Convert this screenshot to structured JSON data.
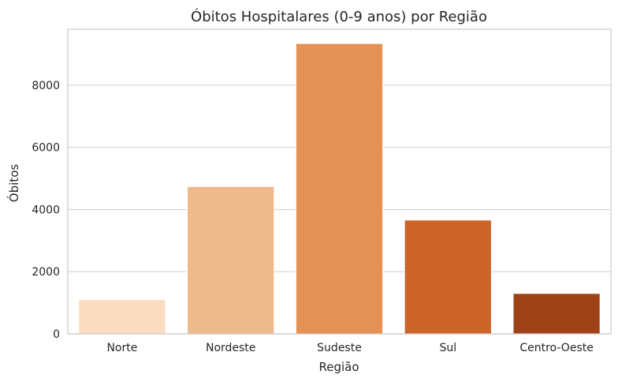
{
  "chart_data": {
    "type": "bar",
    "title": "Óbitos Hospitalares (0-9 anos) por Região",
    "xlabel": "Região",
    "ylabel": "Óbitos",
    "categories": [
      "Norte",
      "Nordeste",
      "Sudeste",
      "Sul",
      "Centro-Oeste"
    ],
    "values": [
      1100,
      4740,
      9340,
      3660,
      1300
    ],
    "colors": [
      "#fbdcc0",
      "#eeb98b",
      "#e49155",
      "#cd6428",
      "#9f4218"
    ],
    "ylim": [
      0,
      9800
    ],
    "yticks": [
      0,
      2000,
      4000,
      6000,
      8000
    ],
    "grid": "horizontal",
    "legend": "none"
  }
}
